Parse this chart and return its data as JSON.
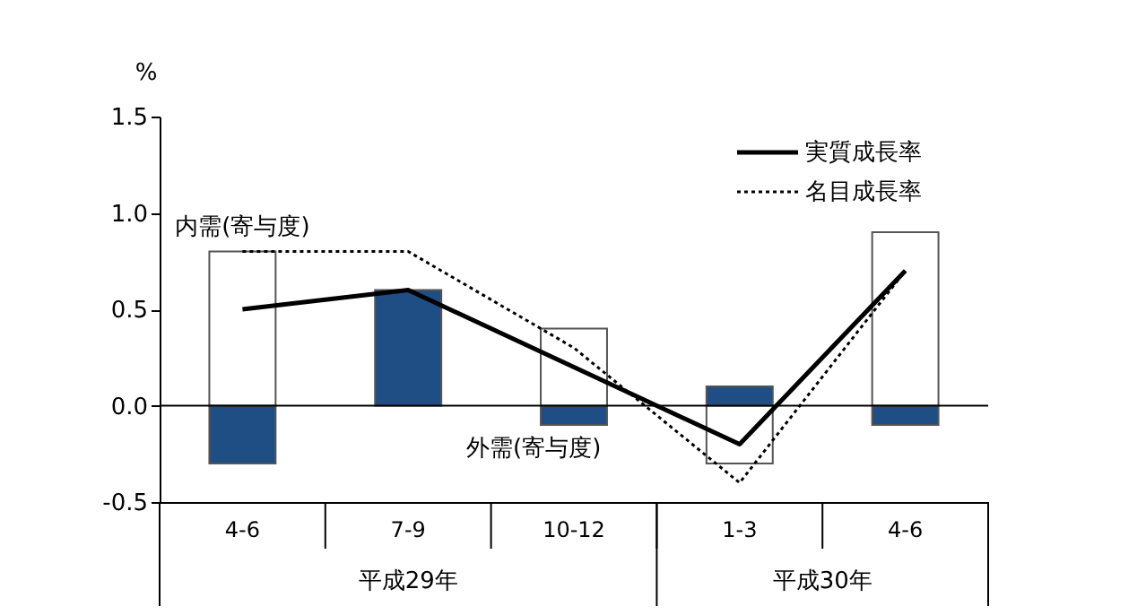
{
  "chart_data": {
    "type": "bar",
    "stacked": true,
    "ylabel": "%",
    "categories": [
      "4-6",
      "7-9",
      "10-12",
      "1-3",
      "4-6"
    ],
    "ylim": [
      -0.5,
      1.5
    ],
    "yticks": [
      -0.5,
      {
        "value": 0,
        "label": "0.0"
      },
      0.5,
      {
        "value": 1,
        "label": "1.0"
      },
      1.5
    ],
    "legend": "top right",
    "ref_lines": [
      {
        "axis": "y",
        "value": 0,
        "color": "#000000"
      }
    ],
    "annotations": [
      "平成29年",
      "平成30年"
    ],
    "series": [
      {
        "name": "外需(寄与度)",
        "color": "#1f4e85",
        "values": [
          -0.3,
          0.6,
          -0.1,
          0.1,
          -0.1
        ]
      },
      {
        "name": "内需(寄与度)",
        "color": "#ffffff",
        "values": [
          0.8,
          null,
          0.4,
          -0.3,
          0.9
        ]
      },
      {
        "name": "実質成長率",
        "type": "line",
        "color": "#000000",
        "line_style": "solid",
        "values": [
          0.5,
          0.6,
          0.2,
          -0.2,
          0.7
        ]
      },
      {
        "name": "名目成長率",
        "type": "line",
        "color": "#000000",
        "line_style": "dotted",
        "values": [
          0.8,
          0.8,
          0.3,
          -0.4,
          0.7
        ]
      }
    ]
  }
}
